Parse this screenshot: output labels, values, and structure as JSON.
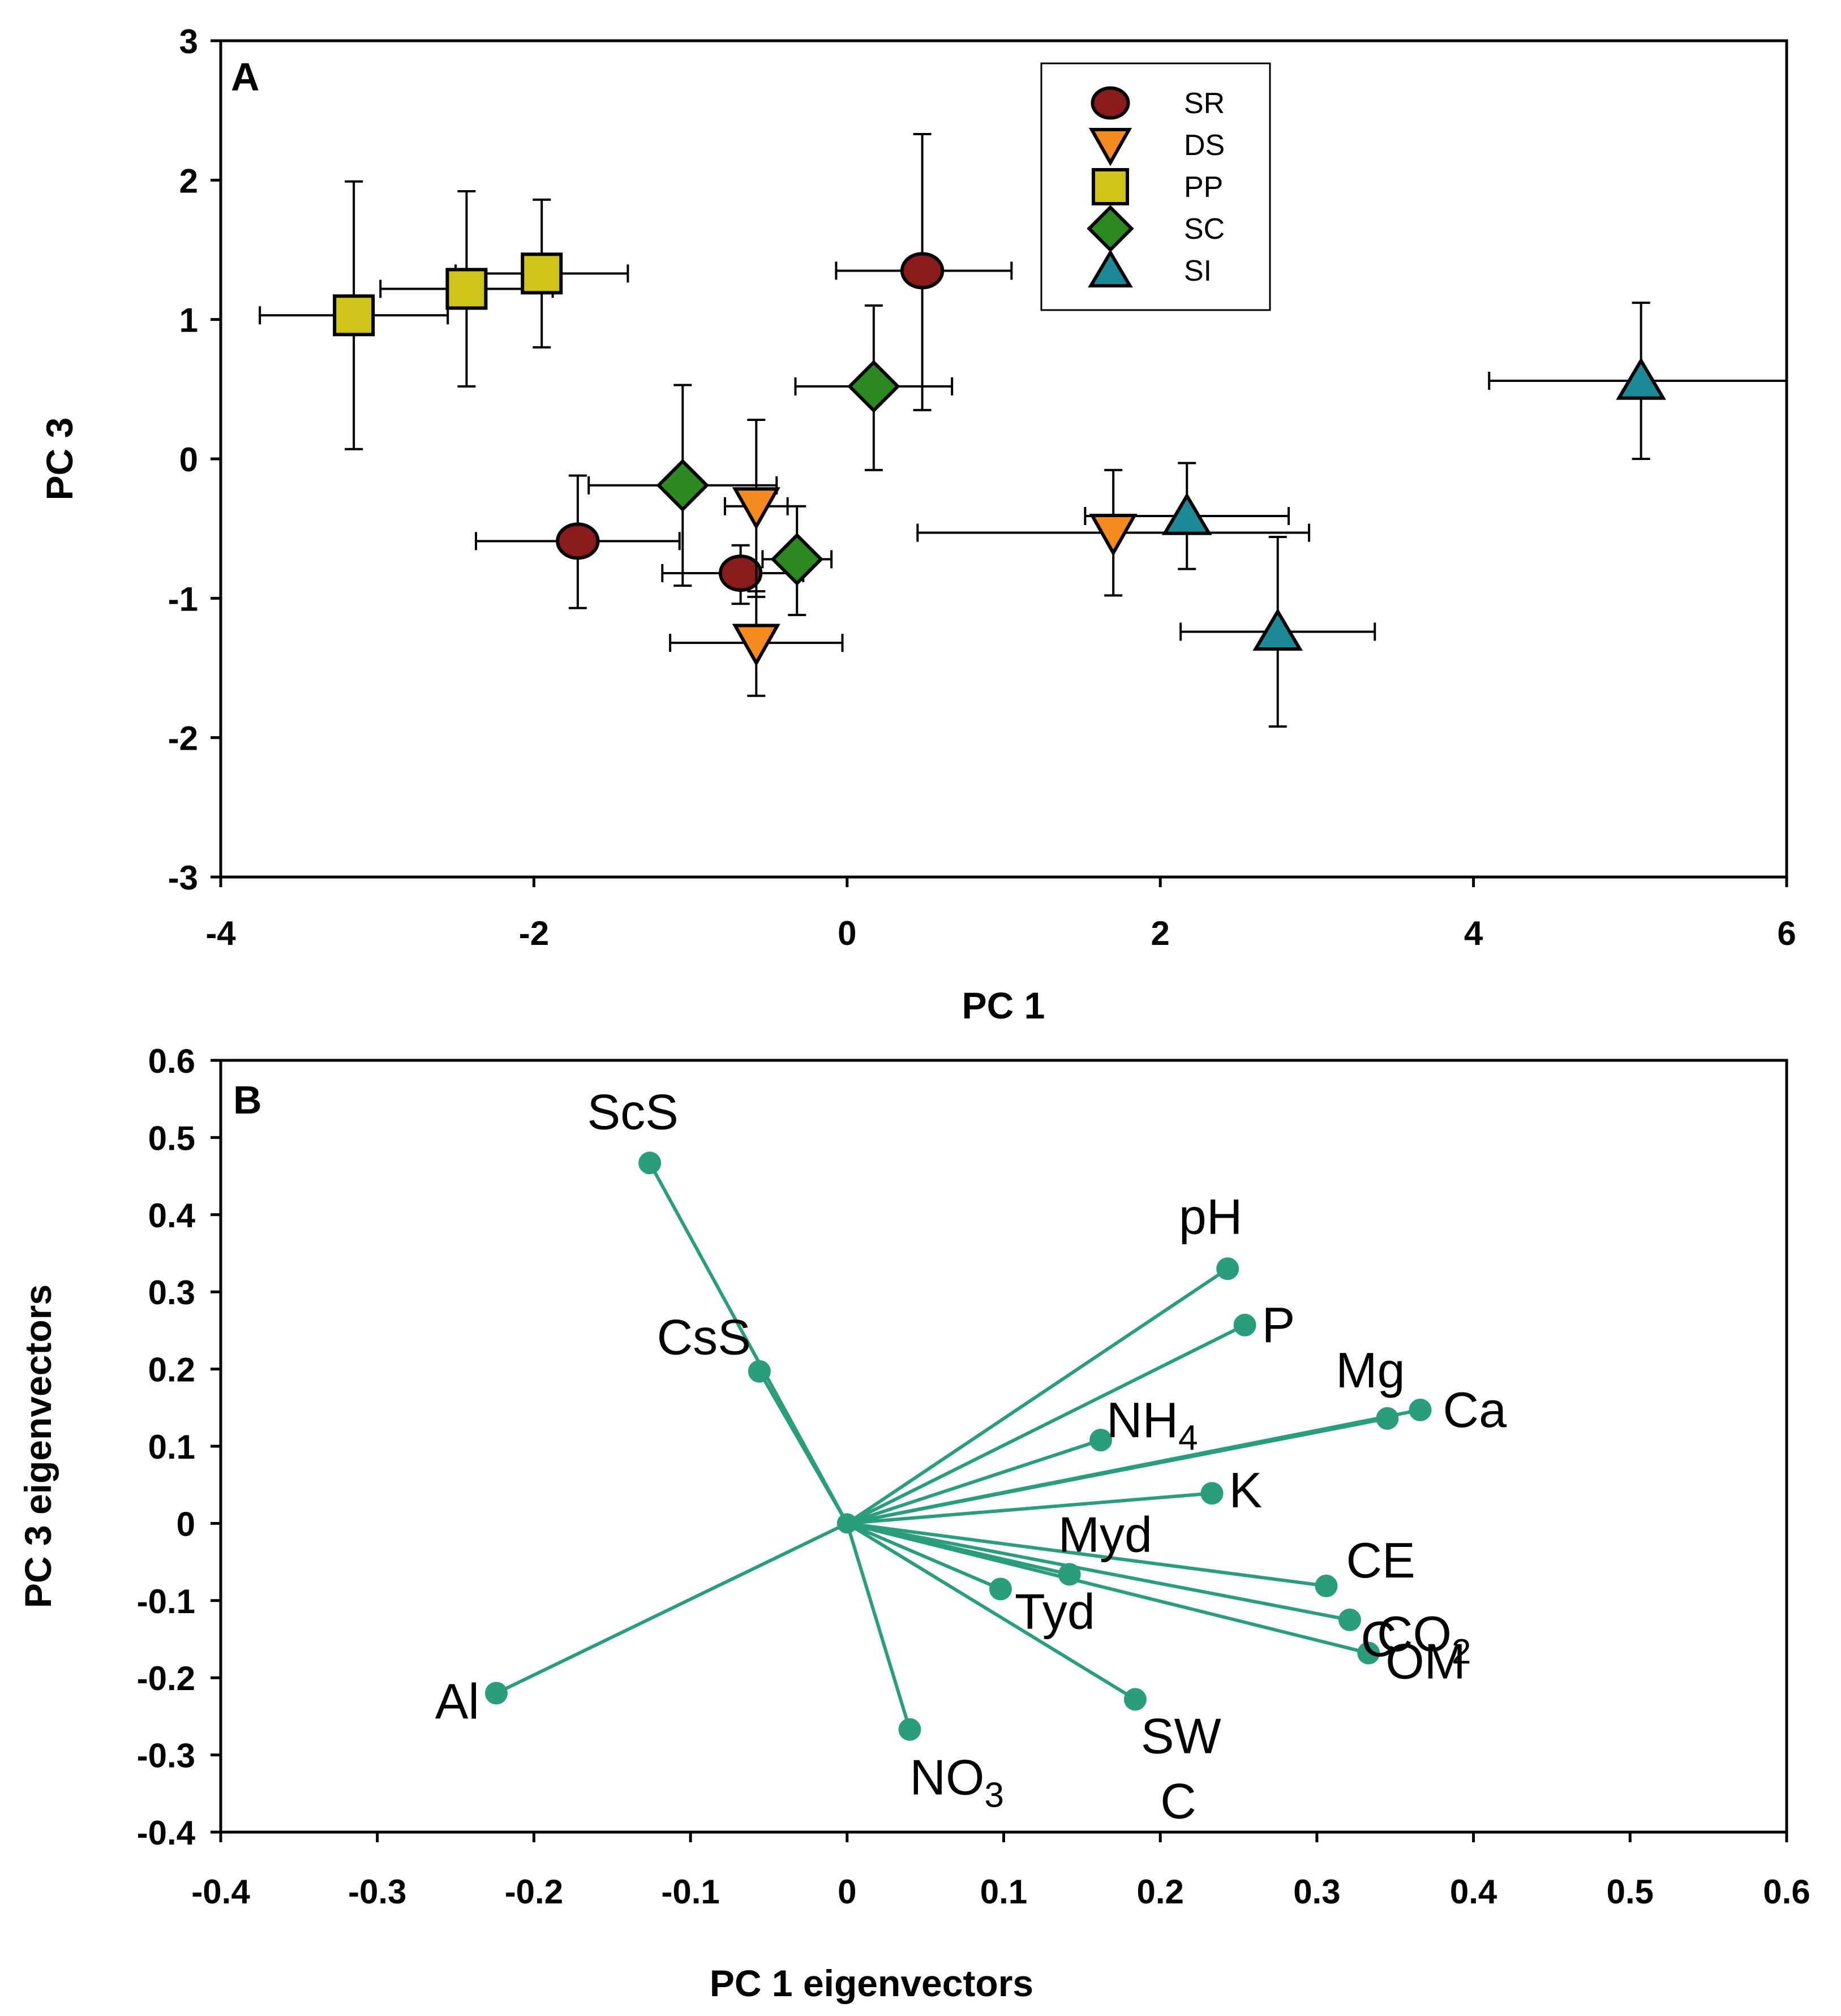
{
  "chart_data": [
    {
      "panel": "A",
      "type": "scatter",
      "xlabel": "PC 1",
      "ylabel": "PC 3",
      "xlim": [
        -4,
        6
      ],
      "ylim": [
        -3,
        3
      ],
      "xticks": [
        "-4",
        "-2",
        "0",
        "2",
        "4",
        "6"
      ],
      "yticks": [
        "3",
        "2",
        "1",
        "0",
        "-1",
        "-2",
        "-3"
      ],
      "xtick_values": [
        -4,
        -2,
        0,
        2,
        4,
        6
      ],
      "ytick_values": [
        3,
        2,
        1,
        0,
        -1,
        -2,
        -3
      ],
      "legend_position": "top-right",
      "series": [
        {
          "name": "SR",
          "marker": "circle",
          "color": "#8b1a1a",
          "points": [
            {
              "x": 0.48,
              "y": 1.35,
              "xerr": [
                0.55,
                0.57
              ],
              "yerr": [
                1.0,
                0.98
              ]
            },
            {
              "x": -1.72,
              "y": -0.59,
              "xerr": [
                0.65,
                0.65
              ],
              "yerr": [
                0.48,
                0.47
              ]
            },
            {
              "x": -0.68,
              "y": -0.82,
              "xerr": [
                0.5,
                0.4
              ],
              "yerr": [
                0.22,
                0.2
              ]
            }
          ]
        },
        {
          "name": "DS",
          "marker": "triangle-down",
          "color": "#f58a1f",
          "points": [
            {
              "x": -0.58,
              "y": -0.34,
              "xerr": [
                0.2,
                0.2
              ],
              "yerr": [
                0.65,
                0.62
              ]
            },
            {
              "x": -0.58,
              "y": -1.32,
              "xerr": [
                0.55,
                0.55
              ],
              "yerr": [
                0.38,
                0.37
              ]
            },
            {
              "x": 1.7,
              "y": -0.53,
              "xerr": [
                1.25,
                1.25
              ],
              "yerr": [
                0.45,
                0.45
              ]
            }
          ]
        },
        {
          "name": "PP",
          "marker": "square",
          "color": "#cfc31a",
          "points": [
            {
              "x": -3.15,
              "y": 1.03,
              "xerr": [
                0.6,
                0.6
              ],
              "yerr": [
                0.96,
                0.96
              ]
            },
            {
              "x": -2.43,
              "y": 1.22,
              "xerr": [
                0.55,
                0.55
              ],
              "yerr": [
                0.7,
                0.7
              ]
            },
            {
              "x": -1.95,
              "y": 1.33,
              "xerr": [
                0.55,
                0.55
              ],
              "yerr": [
                0.53,
                0.53
              ]
            }
          ]
        },
        {
          "name": "SC",
          "marker": "diamond",
          "color": "#2a8a1f",
          "points": [
            {
              "x": 0.17,
              "y": 0.52,
              "xerr": [
                0.5,
                0.5
              ],
              "yerr": [
                0.6,
                0.58
              ]
            },
            {
              "x": -1.05,
              "y": -0.19,
              "xerr": [
                0.6,
                0.6
              ],
              "yerr": [
                0.72,
                0.72
              ]
            },
            {
              "x": -0.32,
              "y": -0.72,
              "xerr": [
                0.22,
                0.22
              ],
              "yerr": [
                0.4,
                0.38
              ]
            }
          ]
        },
        {
          "name": "SI",
          "marker": "triangle-up",
          "color": "#1c8a96",
          "points": [
            {
              "x": 5.07,
              "y": 0.56,
              "xerr": [
                0.97,
                0.93
              ],
              "yerr": [
                0.56,
                0.56
              ]
            },
            {
              "x": 2.17,
              "y": -0.41,
              "xerr": [
                0.65,
                0.65
              ],
              "yerr": [
                0.38,
                0.38
              ]
            },
            {
              "x": 2.75,
              "y": -1.24,
              "xerr": [
                0.62,
                0.62
              ],
              "yerr": [
                0.68,
                0.68
              ]
            }
          ]
        }
      ]
    },
    {
      "panel": "B",
      "type": "biplot",
      "xlabel": "PC 1 eigenvectors",
      "ylabel": "PC 3 eigenvectors",
      "xlim": [
        -0.4,
        0.6
      ],
      "ylim": [
        -0.4,
        0.6
      ],
      "xticks": [
        "-0.4",
        "-0.3",
        "-0.2",
        "-0.1",
        "0",
        "0.1",
        "0.2",
        "0.3",
        "0.4",
        "0.5",
        "0.6"
      ],
      "yticks": [
        "0.6",
        "0.5",
        "0.4",
        "0.3",
        "0.2",
        "0.1",
        "0",
        "-0.1",
        "-0.2",
        "-0.3",
        "-0.4"
      ],
      "xtick_values": [
        -0.4,
        -0.3,
        -0.2,
        -0.1,
        0,
        0.1,
        0.2,
        0.3,
        0.4,
        0.5,
        0.6
      ],
      "ytick_values": [
        0.6,
        0.5,
        0.4,
        0.3,
        0.2,
        0.1,
        0,
        -0.1,
        -0.2,
        -0.3,
        -0.4
      ],
      "color": "#2a9d7c",
      "vectors": [
        {
          "label": "ScS",
          "sub": "",
          "x": -0.126,
          "y": 0.467
        },
        {
          "label": "CsS",
          "sub": "",
          "x": -0.056,
          "y": 0.197
        },
        {
          "label": "pH",
          "sub": "",
          "x": 0.243,
          "y": 0.33
        },
        {
          "label": "P",
          "sub": "",
          "x": 0.254,
          "y": 0.257
        },
        {
          "label": "Mg",
          "sub": "",
          "x": 0.345,
          "y": 0.136
        },
        {
          "label": "Ca",
          "sub": "",
          "x": 0.366,
          "y": 0.147
        },
        {
          "label": "NH",
          "sub": "4",
          "x": 0.162,
          "y": 0.108
        },
        {
          "label": "K",
          "sub": "",
          "x": 0.233,
          "y": 0.039
        },
        {
          "label": "Myd",
          "sub": "",
          "x": 0.142,
          "y": -0.066
        },
        {
          "label": "Tyd",
          "sub": "",
          "x": 0.098,
          "y": -0.085
        },
        {
          "label": "CE",
          "sub": "",
          "x": 0.306,
          "y": -0.081
        },
        {
          "label": "CO",
          "sub": "2",
          "x": 0.321,
          "y": -0.125
        },
        {
          "label": "OM",
          "sub": "",
          "x": 0.333,
          "y": -0.168
        },
        {
          "label": "SW",
          "sub": "",
          "x": 0.184,
          "y": -0.228
        },
        {
          "label": "NO",
          "sub": "3",
          "x": 0.04,
          "y": -0.267
        },
        {
          "label": "Al",
          "sub": "",
          "x": -0.224,
          "y": -0.22
        }
      ],
      "stray_labels": [
        {
          "text": "C",
          "x": 0.328,
          "y": -0.15
        },
        {
          "text": "C",
          "x": 0.2,
          "y": -0.36
        }
      ]
    }
  ]
}
